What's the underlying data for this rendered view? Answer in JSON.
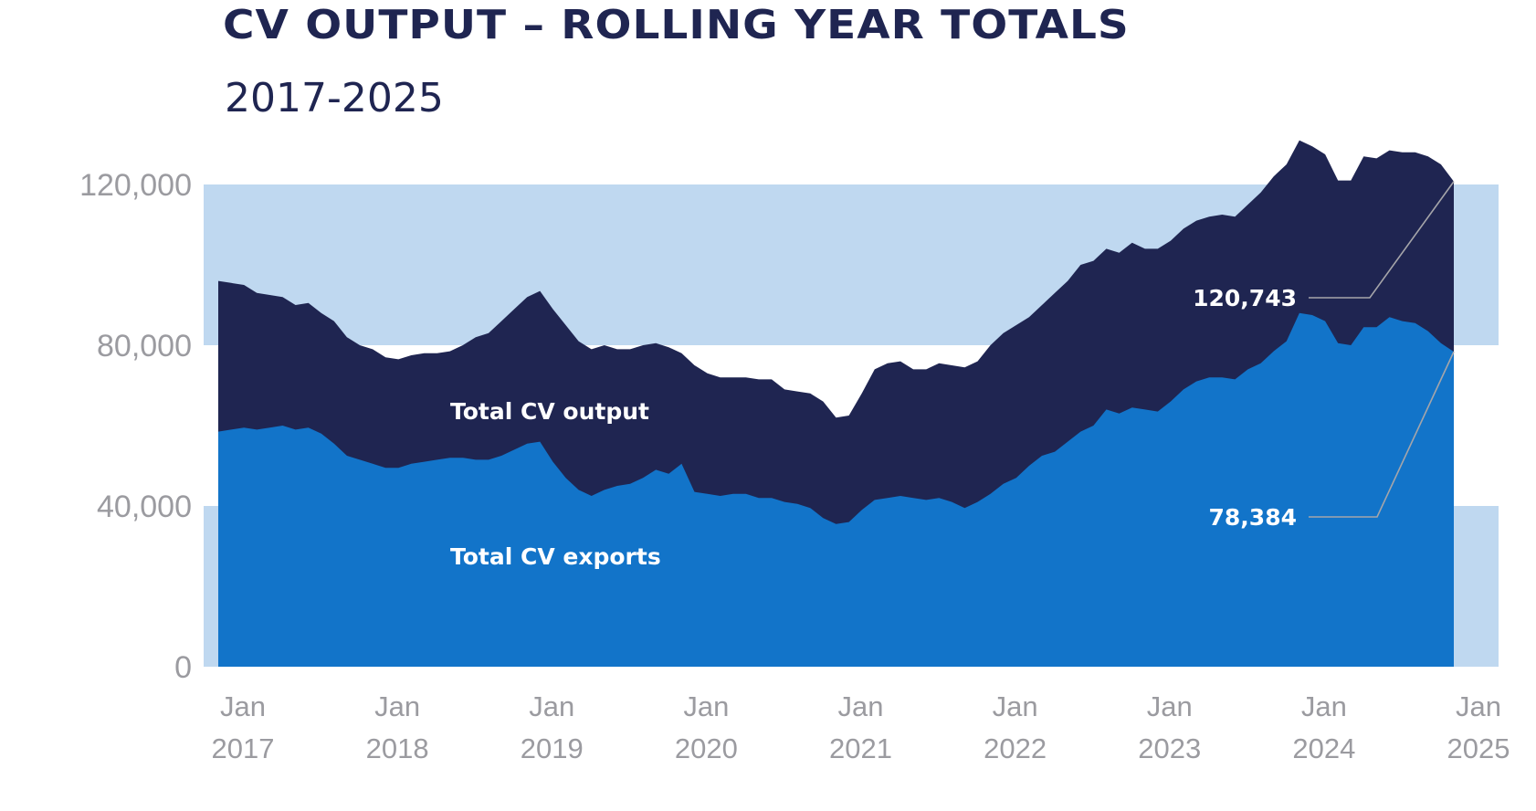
{
  "chart_data": {
    "type": "area",
    "title": "CV OUTPUT – ROLLING YEAR TOTALS",
    "subtitle": "2017-2025",
    "xlabel": "",
    "ylabel": "",
    "ylim": [
      0,
      131000
    ],
    "yticks": [
      0,
      40000,
      80000,
      120000
    ],
    "ytick_labels": [
      "0",
      "40,000",
      "80,000",
      "120,000"
    ],
    "xtick_labels": [
      {
        "month": "Jan",
        "year": "2017",
        "index": 0
      },
      {
        "month": "Jan",
        "year": "2018",
        "index": 12
      },
      {
        "month": "Jan",
        "year": "2019",
        "index": 24
      },
      {
        "month": "Jan",
        "year": "2020",
        "index": 36
      },
      {
        "month": "Jan",
        "year": "2021",
        "index": 48
      },
      {
        "month": "Jan",
        "year": "2022",
        "index": 60
      },
      {
        "month": "Jan",
        "year": "2023",
        "index": 72
      },
      {
        "month": "Jan",
        "year": "2024",
        "index": 84
      },
      {
        "month": "Jan",
        "year": "2025",
        "index": 96
      }
    ],
    "background_bands": [
      [
        0,
        40000
      ],
      [
        80000,
        120000
      ]
    ],
    "series": [
      {
        "name": "Total CV output",
        "color": "#1f2551",
        "values": [
          96000,
          95500,
          95000,
          93000,
          92500,
          92000,
          90000,
          90500,
          88000,
          86000,
          82000,
          80000,
          79000,
          77000,
          76500,
          77500,
          78000,
          78000,
          78500,
          80000,
          82000,
          83000,
          86000,
          89000,
          92000,
          93500,
          89000,
          85000,
          81000,
          79000,
          80000,
          79000,
          79000,
          80000,
          80500,
          79500,
          78000,
          75000,
          73000,
          72000,
          72000,
          72000,
          71500,
          71500,
          69000,
          68500,
          68000,
          66000,
          62000,
          62500,
          68000,
          74000,
          75500,
          76000,
          74000,
          74000,
          75500,
          75000,
          74500,
          76000,
          80000,
          83000,
          85000,
          87000,
          90000,
          93000,
          96000,
          100000,
          101000,
          104000,
          103000,
          105500,
          104000,
          104000,
          106000,
          109000,
          111000,
          112000,
          112500,
          112000,
          115000,
          118000,
          122000,
          125000,
          131000,
          129500,
          127500,
          121000,
          121000,
          127000,
          126500,
          128500,
          128000,
          128000,
          127000,
          125000,
          120743
        ]
      },
      {
        "name": "Total CV exports",
        "color": "#1274c9",
        "values": [
          58500,
          59000,
          59500,
          59000,
          59500,
          60000,
          59000,
          59500,
          58000,
          55500,
          52500,
          51500,
          50500,
          49500,
          49500,
          50500,
          51000,
          51500,
          52000,
          52000,
          51500,
          51500,
          52500,
          54000,
          55500,
          56000,
          51000,
          47000,
          44000,
          42500,
          44000,
          45000,
          45500,
          47000,
          49000,
          48000,
          50500,
          43500,
          43000,
          42500,
          43000,
          43000,
          42000,
          42000,
          41000,
          40500,
          39500,
          37000,
          35500,
          36000,
          39000,
          41500,
          42000,
          42500,
          42000,
          41500,
          42000,
          41000,
          39500,
          41000,
          43000,
          45500,
          47000,
          50000,
          52500,
          53500,
          56000,
          58500,
          60000,
          64000,
          63000,
          64500,
          64000,
          63500,
          66000,
          69000,
          71000,
          72000,
          72000,
          71500,
          74000,
          75500,
          78500,
          81000,
          88000,
          87500,
          86000,
          80500,
          80000,
          84500,
          84500,
          87000,
          86000,
          85500,
          83500,
          80500,
          78384
        ]
      }
    ],
    "annotations": [
      {
        "text": "120,743",
        "series": "Total CV output",
        "value": 120743
      },
      {
        "text": "78,384",
        "series": "Total CV exports",
        "value": 78384
      }
    ],
    "legend": "inline-labels"
  }
}
